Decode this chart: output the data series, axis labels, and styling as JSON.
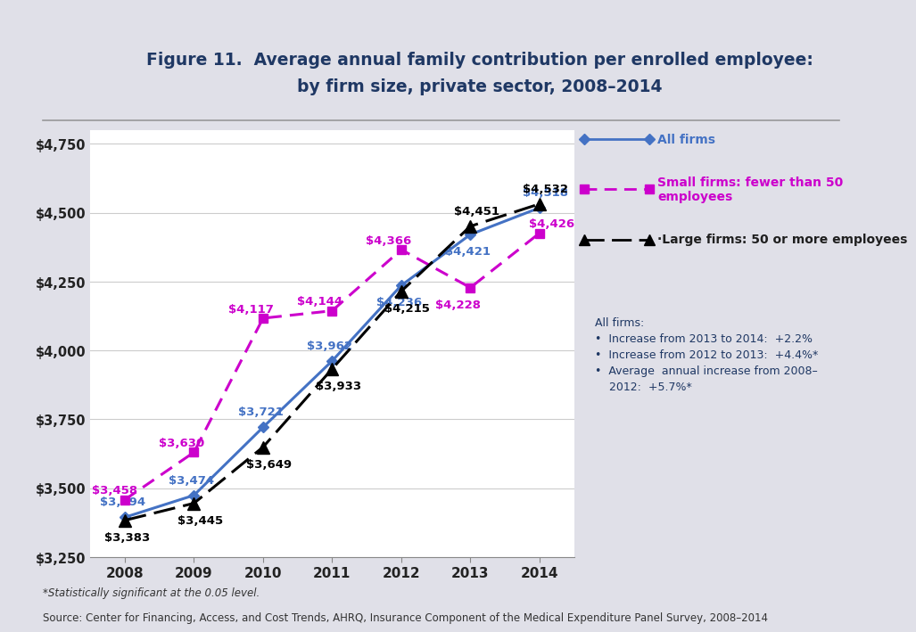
{
  "years": [
    2008,
    2009,
    2010,
    2011,
    2012,
    2013,
    2014
  ],
  "all_firms": [
    3394,
    3474,
    3721,
    3962,
    4236,
    4421,
    4518
  ],
  "small_firms": [
    3458,
    3630,
    4117,
    4144,
    4366,
    4228,
    4426
  ],
  "large_firms": [
    3383,
    3445,
    3649,
    3933,
    4215,
    4451,
    4532
  ],
  "all_firms_color": "#4472C4",
  "small_firms_color": "#CC00CC",
  "large_firms_color": "#000000",
  "title_line1": "Figure 11.  Average annual family contribution per enrolled employee:",
  "title_line2": "by firm size, private sector, 2008–2014",
  "title_color": "#1F3864",
  "ylim": [
    3250,
    4800
  ],
  "yticks": [
    3250,
    3500,
    3750,
    4000,
    4250,
    4500,
    4750
  ],
  "ytick_labels": [
    "$3,250",
    "$3,500",
    "$3,750",
    "$4,000",
    "$4,250",
    "$4,500",
    "$4,750"
  ],
  "legend_all": "All firms",
  "legend_small": "Small firms: fewer than 50 employees",
  "legend_large": "·Large firms: 50 or more employees",
  "annotation_text": "All firms:\n•  Increase from 2013 to 2014:  +2.2%\n•  Increase from 2012 to 2013:  +4.4%*\n•  Average  annual increase from 2008–\n    2012:  +5.7%*",
  "annotation_color": "#1F3864",
  "footnote1": "*Statistically significant at the 0.05 level.",
  "footnote2": "Source: Center for Financing, Access, and Cost Trends, AHRQ, Insurance Component of the Medical Expenditure Panel Survey, 2008–2014"
}
